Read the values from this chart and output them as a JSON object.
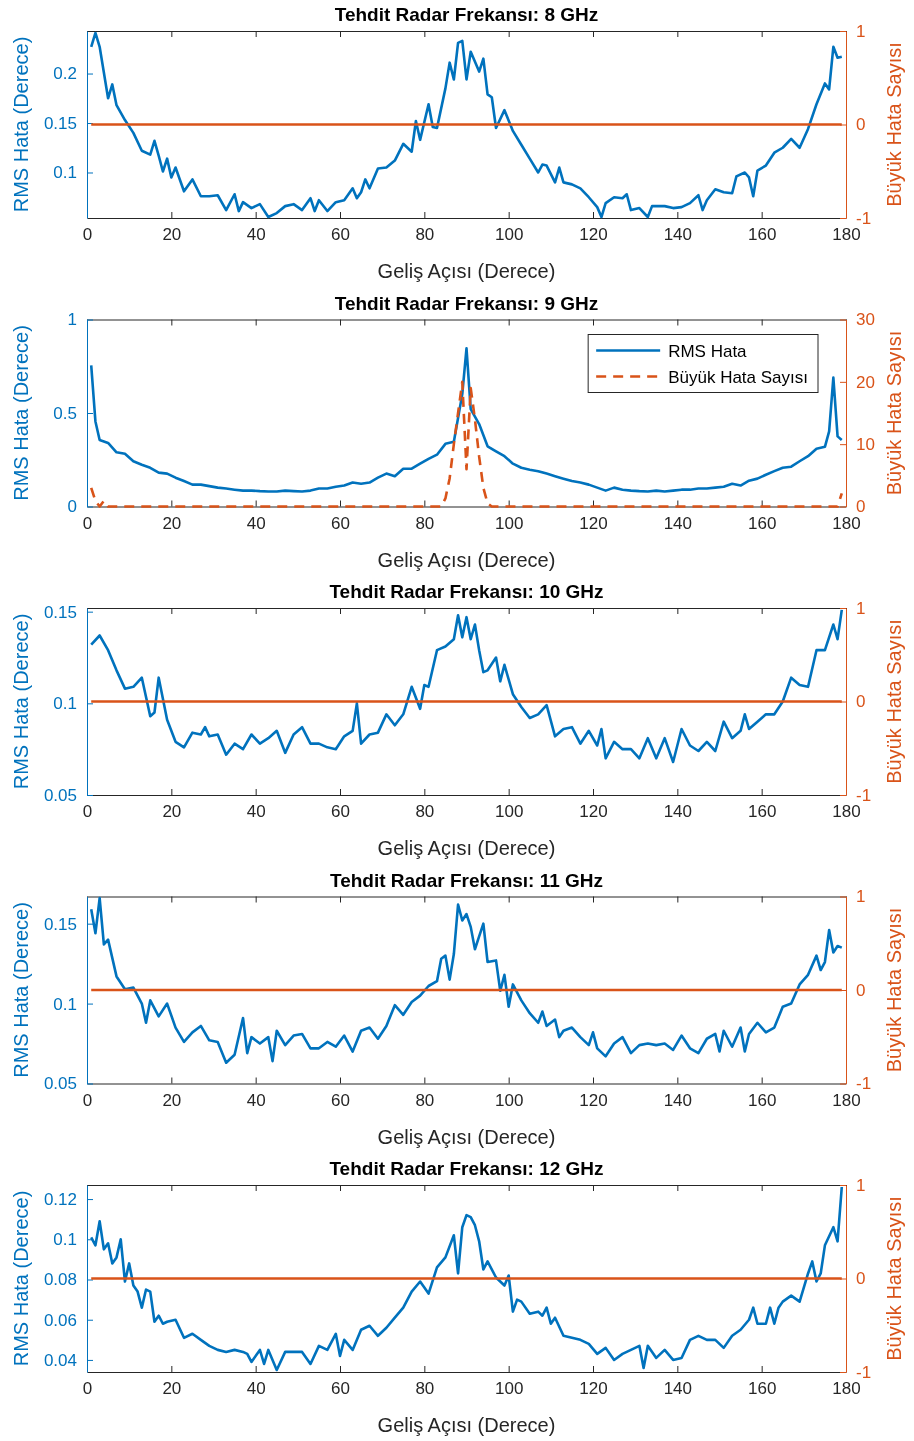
{
  "chart_data": [
    {
      "type": "line",
      "title": "Tehdit Radar Frekansı: 8 GHz",
      "xlabel": "Geliş Açısı (Derece)",
      "ylabel": "RMS Hata (Derece)",
      "y2label": "Büyük Hata Sayısı",
      "xlim": [
        0,
        180
      ],
      "xticks": [
        0,
        20,
        40,
        60,
        80,
        100,
        120,
        140,
        160,
        180
      ],
      "ylim": [
        0.054,
        0.243
      ],
      "yticks": [
        0.1,
        0.15,
        0.2
      ],
      "y2lim": [
        -1,
        1
      ],
      "y2ticks": [
        -1,
        0,
        1
      ],
      "grid": false,
      "series": [
        {
          "color": "#0072bd",
          "line_style": "solid",
          "x": [
            1,
            2,
            3,
            5,
            6,
            7,
            9,
            11,
            13,
            15,
            16,
            17,
            18,
            19,
            20,
            21,
            23,
            25,
            27,
            29,
            31,
            33,
            35,
            36,
            37,
            39,
            41,
            43,
            45,
            47,
            49,
            51,
            53,
            54,
            55,
            57,
            59,
            61,
            63,
            64,
            65,
            66,
            67,
            69,
            71,
            73,
            75,
            77,
            78,
            79,
            81,
            82,
            83,
            85,
            86,
            87,
            88,
            89,
            90,
            91,
            93,
            94,
            95,
            96,
            97,
            99,
            101,
            103,
            105,
            107,
            108,
            109,
            111,
            112,
            113,
            115,
            117,
            119,
            121,
            122,
            123,
            125,
            127,
            128,
            129,
            131,
            133,
            134,
            137,
            139,
            141,
            143,
            145,
            146,
            147,
            149,
            151,
            153,
            154,
            156,
            157,
            158,
            159,
            161,
            163,
            165,
            167,
            169,
            171,
            173,
            175,
            176,
            177,
            178,
            179
          ],
          "values": [
            0.227,
            0.241,
            0.227,
            0.175,
            0.189,
            0.168,
            0.153,
            0.14,
            0.122,
            0.118,
            0.132,
            0.117,
            0.101,
            0.114,
            0.095,
            0.105,
            0.081,
            0.093,
            0.076,
            0.076,
            0.077,
            0.062,
            0.078,
            0.061,
            0.07,
            0.064,
            0.068,
            0.055,
            0.059,
            0.066,
            0.068,
            0.062,
            0.074,
            0.061,
            0.072,
            0.061,
            0.07,
            0.072,
            0.084,
            0.074,
            0.08,
            0.093,
            0.084,
            0.104,
            0.105,
            0.112,
            0.129,
            0.121,
            0.152,
            0.133,
            0.169,
            0.146,
            0.145,
            0.185,
            0.211,
            0.194,
            0.231,
            0.233,
            0.194,
            0.222,
            0.202,
            0.215,
            0.179,
            0.176,
            0.145,
            0.163,
            0.142,
            0.128,
            0.114,
            0.1,
            0.108,
            0.107,
            0.09,
            0.105,
            0.09,
            0.088,
            0.084,
            0.075,
            0.065,
            0.055,
            0.069,
            0.075,
            0.074,
            0.078,
            0.062,
            0.064,
            0.055,
            0.066,
            0.066,
            0.064,
            0.065,
            0.069,
            0.077,
            0.062,
            0.072,
            0.083,
            0.08,
            0.079,
            0.096,
            0.1,
            0.095,
            0.076,
            0.102,
            0.107,
            0.12,
            0.125,
            0.134,
            0.125,
            0.144,
            0.169,
            0.19,
            0.184,
            0.227,
            0.216,
            0.217
          ]
        },
        {
          "color": "#d95319",
          "line_style": "solid",
          "axis": "y2",
          "x": [
            1,
            179
          ],
          "values": [
            0,
            0
          ]
        }
      ]
    },
    {
      "type": "line",
      "title": "Tehdit Radar Frekansı: 9 GHz",
      "xlabel": "Geliş Açısı (Derece)",
      "ylabel": "RMS Hata (Derece)",
      "y2label": "Büyük Hata Sayısı",
      "xlim": [
        0,
        180
      ],
      "xticks": [
        0,
        20,
        40,
        60,
        80,
        100,
        120,
        140,
        160,
        180
      ],
      "ylim": [
        0,
        1
      ],
      "yticks": [
        0,
        0.5,
        1
      ],
      "y2lim": [
        0,
        30
      ],
      "y2ticks": [
        0,
        10,
        20,
        30
      ],
      "grid": false,
      "legend": "top right",
      "series": [
        {
          "name": "RMS Hata",
          "color": "#0072bd",
          "line_style": "solid",
          "x": [
            1,
            2,
            3,
            5,
            7,
            9,
            11,
            13,
            15,
            17,
            19,
            21,
            23,
            25,
            27,
            29,
            31,
            33,
            35,
            37,
            39,
            41,
            43,
            45,
            47,
            49,
            51,
            53,
            55,
            57,
            59,
            61,
            63,
            65,
            67,
            69,
            71,
            73,
            75,
            77,
            79,
            81,
            83,
            85,
            87,
            89,
            90,
            91,
            93,
            95,
            97,
            99,
            101,
            103,
            105,
            107,
            109,
            111,
            113,
            115,
            117,
            119,
            121,
            123,
            125,
            127,
            129,
            131,
            133,
            135,
            137,
            139,
            141,
            143,
            145,
            147,
            149,
            151,
            153,
            155,
            157,
            159,
            161,
            163,
            165,
            167,
            169,
            171,
            173,
            175,
            176,
            177,
            178,
            179
          ],
          "values": [
            0.755,
            0.455,
            0.356,
            0.34,
            0.29,
            0.282,
            0.242,
            0.223,
            0.207,
            0.181,
            0.176,
            0.154,
            0.136,
            0.117,
            0.117,
            0.109,
            0.101,
            0.096,
            0.09,
            0.085,
            0.085,
            0.082,
            0.08,
            0.08,
            0.085,
            0.082,
            0.08,
            0.085,
            0.096,
            0.096,
            0.106,
            0.112,
            0.128,
            0.122,
            0.128,
            0.154,
            0.176,
            0.162,
            0.202,
            0.202,
            0.229,
            0.255,
            0.277,
            0.335,
            0.346,
            0.601,
            0.846,
            0.521,
            0.441,
            0.322,
            0.295,
            0.269,
            0.229,
            0.207,
            0.197,
            0.189,
            0.176,
            0.162,
            0.149,
            0.136,
            0.128,
            0.117,
            0.101,
            0.085,
            0.101,
            0.09,
            0.085,
            0.082,
            0.08,
            0.085,
            0.08,
            0.085,
            0.09,
            0.09,
            0.096,
            0.096,
            0.101,
            0.106,
            0.122,
            0.112,
            0.138,
            0.149,
            0.17,
            0.189,
            0.207,
            0.213,
            0.242,
            0.269,
            0.309,
            0.319,
            0.402,
            0.689,
            0.375,
            0.356
          ]
        },
        {
          "name": "Büyük Hata Sayısı",
          "color": "#d95319",
          "line_style": "dashed",
          "axis": "y2",
          "x": [
            1,
            2,
            3,
            4,
            5,
            84,
            85,
            86,
            87,
            88,
            89,
            90,
            91,
            92,
            93,
            94,
            95,
            96,
            178,
            179
          ],
          "values": [
            3,
            0.9,
            0,
            0.9,
            0,
            0,
            1.3,
            4.5,
            10,
            15,
            20,
            6,
            19,
            14,
            8,
            3,
            0.5,
            0,
            0,
            2.1
          ]
        }
      ]
    },
    {
      "type": "line",
      "title": "Tehdit Radar Frekansı: 10 GHz",
      "xlabel": "Geliş Açısı (Derece)",
      "ylabel": "RMS Hata (Derece)",
      "y2label": "Büyük Hata Sayısı",
      "xlim": [
        0,
        180
      ],
      "xticks": [
        0,
        20,
        40,
        60,
        80,
        100,
        120,
        140,
        160,
        180
      ],
      "ylim": [
        0.05,
        0.152
      ],
      "yticks": [
        0.05,
        0.1,
        0.15
      ],
      "y2lim": [
        -1,
        1
      ],
      "y2ticks": [
        -1,
        0,
        1
      ],
      "grid": false,
      "series": [
        {
          "color": "#0072bd",
          "line_style": "solid",
          "x": [
            1,
            3,
            5,
            7,
            9,
            11,
            13,
            15,
            16,
            17,
            19,
            21,
            23,
            25,
            27,
            28,
            29,
            31,
            33,
            35,
            37,
            39,
            41,
            43,
            45,
            47,
            49,
            51,
            53,
            55,
            57,
            59,
            61,
            63,
            64,
            65,
            67,
            69,
            71,
            73,
            75,
            77,
            79,
            80,
            81,
            83,
            85,
            87,
            88,
            89,
            90,
            91,
            92,
            93,
            94,
            95,
            97,
            98,
            99,
            101,
            103,
            105,
            107,
            109,
            111,
            113,
            115,
            117,
            119,
            121,
            122,
            123,
            125,
            127,
            129,
            131,
            133,
            135,
            137,
            139,
            141,
            143,
            145,
            147,
            149,
            151,
            153,
            155,
            156,
            157,
            159,
            161,
            163,
            165,
            167,
            169,
            171,
            173,
            175,
            177,
            178,
            179
          ],
          "values": [
            0.132,
            0.137,
            0.129,
            0.118,
            0.108,
            0.109,
            0.114,
            0.093,
            0.095,
            0.114,
            0.091,
            0.079,
            0.076,
            0.084,
            0.083,
            0.087,
            0.082,
            0.083,
            0.072,
            0.078,
            0.075,
            0.083,
            0.078,
            0.081,
            0.085,
            0.073,
            0.083,
            0.087,
            0.078,
            0.078,
            0.076,
            0.075,
            0.082,
            0.085,
            0.1,
            0.078,
            0.083,
            0.084,
            0.094,
            0.088,
            0.094,
            0.109,
            0.097,
            0.11,
            0.109,
            0.129,
            0.131,
            0.135,
            0.148,
            0.136,
            0.147,
            0.135,
            0.143,
            0.129,
            0.117,
            0.118,
            0.125,
            0.112,
            0.121,
            0.105,
            0.098,
            0.092,
            0.094,
            0.099,
            0.082,
            0.086,
            0.087,
            0.078,
            0.085,
            0.077,
            0.086,
            0.07,
            0.079,
            0.075,
            0.075,
            0.07,
            0.081,
            0.07,
            0.081,
            0.068,
            0.086,
            0.077,
            0.074,
            0.079,
            0.074,
            0.09,
            0.081,
            0.085,
            0.094,
            0.086,
            0.09,
            0.094,
            0.094,
            0.101,
            0.114,
            0.11,
            0.109,
            0.129,
            0.129,
            0.143,
            0.135,
            0.151
          ]
        },
        {
          "color": "#d95319",
          "line_style": "solid",
          "axis": "y2",
          "x": [
            1,
            179
          ],
          "values": [
            0,
            0
          ]
        }
      ]
    },
    {
      "type": "line",
      "title": "Tehdit Radar Frekansı: 11 GHz",
      "xlabel": "Geliş Açısı (Derece)",
      "ylabel": "RMS Hata (Derece)",
      "y2label": "Büyük Hata Sayısı",
      "xlim": [
        0,
        180
      ],
      "xticks": [
        0,
        20,
        40,
        60,
        80,
        100,
        120,
        140,
        160,
        180
      ],
      "ylim": [
        0.05,
        0.167
      ],
      "yticks": [
        0.05,
        0.1,
        0.15
      ],
      "y2lim": [
        -1,
        1
      ],
      "y2ticks": [
        -1,
        0,
        1
      ],
      "grid": false,
      "series": [
        {
          "color": "#0072bd",
          "line_style": "solid",
          "x": [
            1,
            2,
            3,
            4,
            5,
            7,
            9,
            11,
            13,
            14,
            15,
            17,
            19,
            21,
            23,
            25,
            27,
            29,
            31,
            33,
            35,
            37,
            38,
            39,
            41,
            43,
            44,
            45,
            47,
            49,
            51,
            53,
            55,
            57,
            59,
            61,
            63,
            65,
            67,
            69,
            71,
            73,
            75,
            77,
            79,
            81,
            83,
            84,
            85,
            86,
            87,
            88,
            89,
            90,
            91,
            92,
            93,
            94,
            95,
            97,
            98,
            99,
            100,
            101,
            103,
            105,
            107,
            108,
            109,
            111,
            112,
            113,
            115,
            117,
            119,
            120,
            121,
            123,
            125,
            127,
            129,
            131,
            133,
            135,
            137,
            139,
            141,
            143,
            145,
            147,
            149,
            150,
            151,
            153,
            155,
            156,
            157,
            159,
            161,
            163,
            165,
            167,
            169,
            171,
            173,
            174,
            175,
            176,
            177,
            178,
            179
          ],
          "values": [
            0.159,
            0.144,
            0.166,
            0.137,
            0.14,
            0.117,
            0.109,
            0.11,
            0.1,
            0.088,
            0.102,
            0.092,
            0.1,
            0.085,
            0.076,
            0.082,
            0.086,
            0.077,
            0.076,
            0.063,
            0.068,
            0.091,
            0.069,
            0.079,
            0.075,
            0.079,
            0.064,
            0.083,
            0.074,
            0.08,
            0.081,
            0.072,
            0.072,
            0.076,
            0.073,
            0.08,
            0.07,
            0.083,
            0.085,
            0.078,
            0.086,
            0.099,
            0.093,
            0.101,
            0.105,
            0.111,
            0.114,
            0.128,
            0.13,
            0.115,
            0.131,
            0.162,
            0.152,
            0.156,
            0.148,
            0.134,
            0.142,
            0.15,
            0.126,
            0.127,
            0.108,
            0.118,
            0.098,
            0.112,
            0.102,
            0.094,
            0.088,
            0.095,
            0.086,
            0.09,
            0.079,
            0.083,
            0.085,
            0.079,
            0.074,
            0.082,
            0.072,
            0.067,
            0.075,
            0.079,
            0.069,
            0.074,
            0.075,
            0.074,
            0.075,
            0.071,
            0.08,
            0.072,
            0.069,
            0.078,
            0.081,
            0.07,
            0.083,
            0.073,
            0.085,
            0.07,
            0.081,
            0.088,
            0.082,
            0.085,
            0.098,
            0.1,
            0.112,
            0.118,
            0.13,
            0.121,
            0.126,
            0.146,
            0.132,
            0.136,
            0.135
          ]
        },
        {
          "color": "#d95319",
          "line_style": "solid",
          "axis": "y2",
          "x": [
            1,
            179
          ],
          "values": [
            0,
            0
          ]
        }
      ]
    },
    {
      "type": "line",
      "title": "Tehdit Radar Frekansı: 12 GHz",
      "xlabel": "Geliş Açısı (Derece)",
      "ylabel": "RMS Hata (Derece)",
      "y2label": "Büyük Hata Sayısı",
      "xlim": [
        0,
        180
      ],
      "xticks": [
        0,
        20,
        40,
        60,
        80,
        100,
        120,
        140,
        160,
        180
      ],
      "ylim": [
        0.034,
        0.127
      ],
      "yticks": [
        0.04,
        0.06,
        0.08,
        0.1,
        0.12
      ],
      "y2lim": [
        -1,
        1
      ],
      "y2ticks": [
        -1,
        0,
        1
      ],
      "grid": false,
      "series": [
        {
          "color": "#0072bd",
          "line_style": "solid",
          "x": [
            1,
            2,
            3,
            4,
            5,
            6,
            7,
            8,
            9,
            10,
            11,
            12,
            13,
            14,
            15,
            16,
            17,
            18,
            19,
            21,
            23,
            25,
            27,
            29,
            31,
            33,
            35,
            37,
            38,
            39,
            41,
            42,
            43,
            45,
            47,
            49,
            51,
            53,
            55,
            57,
            59,
            60,
            61,
            63,
            65,
            67,
            69,
            71,
            73,
            75,
            77,
            79,
            81,
            83,
            85,
            87,
            88,
            89,
            90,
            91,
            92,
            93,
            94,
            95,
            97,
            99,
            100,
            101,
            102,
            103,
            105,
            107,
            108,
            109,
            110,
            111,
            113,
            115,
            117,
            119,
            121,
            123,
            125,
            127,
            129,
            131,
            132,
            133,
            135,
            137,
            139,
            141,
            143,
            145,
            147,
            149,
            151,
            153,
            155,
            157,
            158,
            159,
            161,
            162,
            163,
            164,
            165,
            167,
            169,
            171,
            172,
            173,
            174,
            175,
            177,
            178,
            179
          ],
          "values": [
            0.101,
            0.097,
            0.109,
            0.095,
            0.098,
            0.088,
            0.091,
            0.1,
            0.079,
            0.088,
            0.077,
            0.074,
            0.066,
            0.075,
            0.074,
            0.059,
            0.062,
            0.058,
            0.059,
            0.06,
            0.051,
            0.053,
            0.05,
            0.047,
            0.045,
            0.044,
            0.045,
            0.044,
            0.043,
            0.039,
            0.045,
            0.038,
            0.045,
            0.035,
            0.044,
            0.044,
            0.044,
            0.038,
            0.047,
            0.045,
            0.053,
            0.042,
            0.05,
            0.045,
            0.055,
            0.057,
            0.052,
            0.056,
            0.061,
            0.066,
            0.074,
            0.079,
            0.073,
            0.086,
            0.091,
            0.102,
            0.083,
            0.106,
            0.112,
            0.111,
            0.107,
            0.099,
            0.085,
            0.089,
            0.081,
            0.077,
            0.082,
            0.064,
            0.07,
            0.069,
            0.063,
            0.064,
            0.062,
            0.066,
            0.058,
            0.061,
            0.052,
            0.051,
            0.05,
            0.048,
            0.043,
            0.046,
            0.04,
            0.043,
            0.045,
            0.047,
            0.036,
            0.047,
            0.041,
            0.045,
            0.04,
            0.041,
            0.05,
            0.052,
            0.05,
            0.05,
            0.046,
            0.052,
            0.055,
            0.06,
            0.066,
            0.058,
            0.058,
            0.066,
            0.058,
            0.066,
            0.069,
            0.072,
            0.069,
            0.083,
            0.089,
            0.079,
            0.083,
            0.097,
            0.106,
            0.099,
            0.126
          ]
        },
        {
          "color": "#d95319",
          "line_style": "solid",
          "axis": "y2",
          "x": [
            1,
            179
          ],
          "values": [
            0,
            0
          ]
        }
      ]
    }
  ]
}
